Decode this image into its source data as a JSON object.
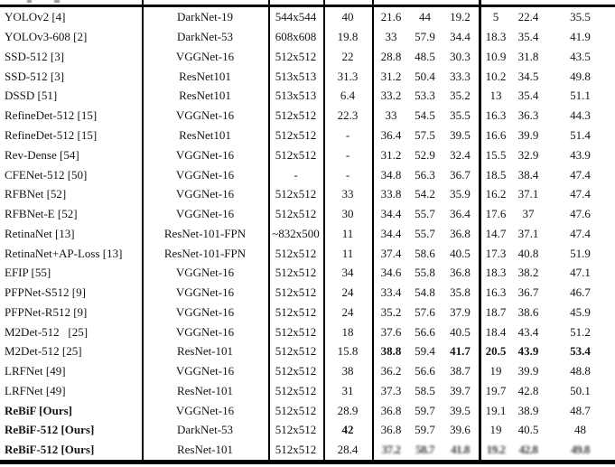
{
  "colors": {
    "background": "#ffffff",
    "rule": "#000000",
    "text": "#141414"
  },
  "table": {
    "rows": [
      {
        "method": "YOLOv2 [4]",
        "backbone": "DarkNet-19",
        "size": "544x544",
        "fps": "40",
        "ap": "21.6",
        "ap50": "44",
        "ap75": "19.2",
        "aps": "5",
        "apm": "22.4",
        "apl": "35.5",
        "bold_fields": [],
        "blur_fields": []
      },
      {
        "method": "YOLOv3-608 [2]",
        "backbone": "DarkNet-53",
        "size": "608x608",
        "fps": "19.8",
        "ap": "33",
        "ap50": "57.9",
        "ap75": "34.4",
        "aps": "18.3",
        "apm": "35.4",
        "apl": "41.9",
        "bold_fields": [],
        "blur_fields": []
      },
      {
        "method": "SSD-512 [3]",
        "backbone": "VGGNet-16",
        "size": "512x512",
        "fps": "22",
        "ap": "28.8",
        "ap50": "48.5",
        "ap75": "30.3",
        "aps": "10.9",
        "apm": "31.8",
        "apl": "43.5",
        "bold_fields": [],
        "blur_fields": []
      },
      {
        "method": "SSD-512 [3]",
        "backbone": "ResNet101",
        "size": "513x513",
        "fps": "31.3",
        "ap": "31.2",
        "ap50": "50.4",
        "ap75": "33.3",
        "aps": "10.2",
        "apm": "34.5",
        "apl": "49.8",
        "bold_fields": [],
        "blur_fields": []
      },
      {
        "method": "DSSD [51]",
        "backbone": "ResNet101",
        "size": "513x513",
        "fps": "6.4",
        "ap": "33.2",
        "ap50": "53.3",
        "ap75": "35.2",
        "aps": "13",
        "apm": "35.4",
        "apl": "51.1",
        "bold_fields": [],
        "blur_fields": []
      },
      {
        "method": "RefineDet-512 [15]",
        "backbone": "VGGNet-16",
        "size": "512x512",
        "fps": "22.3",
        "ap": "33",
        "ap50": "54.5",
        "ap75": "35.5",
        "aps": "16.3",
        "apm": "36.3",
        "apl": "44.3",
        "bold_fields": [],
        "blur_fields": []
      },
      {
        "method": "RefineDet-512 [15]",
        "backbone": "ResNet101",
        "size": "512x512",
        "fps": "-",
        "ap": "36.4",
        "ap50": "57.5",
        "ap75": "39.5",
        "aps": "16.6",
        "apm": "39.9",
        "apl": "51.4",
        "bold_fields": [],
        "blur_fields": []
      },
      {
        "method": "Rev-Dense [54]",
        "backbone": "VGGNet-16",
        "size": "512x512",
        "fps": "-",
        "ap": "31.2",
        "ap50": "52.9",
        "ap75": "32.4",
        "aps": "15.5",
        "apm": "32.9",
        "apl": "43.9",
        "bold_fields": [],
        "blur_fields": []
      },
      {
        "method": "CFENet-512 [50]",
        "backbone": "VGGNet-16",
        "size": "-",
        "fps": "-",
        "ap": "34.8",
        "ap50": "56.3",
        "ap75": "36.7",
        "aps": "18.5",
        "apm": "38.4",
        "apl": "47.4",
        "bold_fields": [],
        "blur_fields": []
      },
      {
        "method": "RFBNet [52]",
        "backbone": "VGGNet-16",
        "size": "512x512",
        "fps": "33",
        "ap": "33.8",
        "ap50": "54.2",
        "ap75": "35.9",
        "aps": "16.2",
        "apm": "37.1",
        "apl": "47.4",
        "bold_fields": [],
        "blur_fields": []
      },
      {
        "method": "RFBNet-E [52]",
        "backbone": "VGGNet-16",
        "size": "512x512",
        "fps": "30",
        "ap": "34.4",
        "ap50": "55.7",
        "ap75": "36.4",
        "aps": "17.6",
        "apm": "37",
        "apl": "47.6",
        "bold_fields": [],
        "blur_fields": []
      },
      {
        "method": "RetinaNet [13]",
        "backbone": "ResNet-101-FPN",
        "size": "~832x500",
        "fps": "11",
        "ap": "34.4",
        "ap50": "55.7",
        "ap75": "36.8",
        "aps": "14.7",
        "apm": "37.1",
        "apl": "47.4",
        "bold_fields": [],
        "blur_fields": []
      },
      {
        "method": "RetinaNet+AP-Loss [13]",
        "backbone": "ResNet-101-FPN",
        "size": "512x512",
        "fps": "11",
        "ap": "37.4",
        "ap50": "58.6",
        "ap75": "40.5",
        "aps": "17.3",
        "apm": "40.8",
        "apl": "51.9",
        "bold_fields": [],
        "blur_fields": []
      },
      {
        "method": "EFIP [55]",
        "backbone": "VGGNet-16",
        "size": "512x512",
        "fps": "34",
        "ap": "34.6",
        "ap50": "55.8",
        "ap75": "36.8",
        "aps": "18.3",
        "apm": "38.2",
        "apl": "47.1",
        "bold_fields": [],
        "blur_fields": []
      },
      {
        "method": "PFPNet-S512 [9]",
        "backbone": "VGGNet-16",
        "size": "512x512",
        "fps": "24",
        "ap": "33.4",
        "ap50": "54.8",
        "ap75": "35.8",
        "aps": "16.3",
        "apm": "36.7",
        "apl": "46.7",
        "bold_fields": [],
        "blur_fields": []
      },
      {
        "method": "PFPNet-R512 [9]",
        "backbone": "VGGNet-16",
        "size": "512x512",
        "fps": "24",
        "ap": "35.2",
        "ap50": "57.6",
        "ap75": "37.9",
        "aps": "18.7",
        "apm": "38.6",
        "apl": "45.9",
        "bold_fields": [],
        "blur_fields": []
      },
      {
        "method": "M2Det-512   [25]",
        "backbone": "VGGNet-16",
        "size": "512x512",
        "fps": "18",
        "ap": "37.6",
        "ap50": "56.6",
        "ap75": "40.5",
        "aps": "18.4",
        "apm": "43.4",
        "apl": "51.2",
        "bold_fields": [],
        "blur_fields": []
      },
      {
        "method": "M2Det-512 [25]",
        "backbone": "ResNet-101",
        "size": "512x512",
        "fps": "15.8",
        "ap": "38.8",
        "ap50": "59.4",
        "ap75": "41.7",
        "aps": "20.5",
        "apm": "43.9",
        "apl": "53.4",
        "bold_fields": [
          "ap",
          "ap75",
          "aps",
          "apm",
          "apl"
        ],
        "blur_fields": []
      },
      {
        "method": "LRFNet [49]",
        "backbone": "VGGNet-16",
        "size": "512x512",
        "fps": "38",
        "ap": "36.2",
        "ap50": "56.6",
        "ap75": "38.7",
        "aps": "19",
        "apm": "39.9",
        "apl": "48.8",
        "bold_fields": [],
        "blur_fields": []
      },
      {
        "method": "LRFNet [49]",
        "backbone": "ResNet-101",
        "size": "512x512",
        "fps": "31",
        "ap": "37.3",
        "ap50": "58.5",
        "ap75": "39.7",
        "aps": "19.7",
        "apm": "42.8",
        "apl": "50.1",
        "bold_fields": [],
        "blur_fields": []
      },
      {
        "method": "ReBiF [Ours]",
        "backbone": "VGGNet-16",
        "size": "512x512",
        "fps": "28.9",
        "ap": "36.8",
        "ap50": "59.7",
        "ap75": "39.5",
        "aps": "19.1",
        "apm": "38.9",
        "apl": "48.7",
        "bold_fields": [
          "method"
        ],
        "blur_fields": []
      },
      {
        "method": "ReBiF-512 [Ours]",
        "backbone": "DarkNet-53",
        "size": "512x512",
        "fps": "42",
        "ap": "36.8",
        "ap50": "59.7",
        "ap75": "39.6",
        "aps": "19",
        "apm": "40.5",
        "apl": "48",
        "bold_fields": [
          "method",
          "fps"
        ],
        "blur_fields": []
      },
      {
        "method": "ReBiF-512 [Ours]",
        "backbone": "ResNet-101",
        "size": "512x512",
        "fps": "28.4",
        "ap": "37.2",
        "ap50": "58.7",
        "ap75": "41.8",
        "aps": "19.2",
        "apm": "42.8",
        "apl": "49.8",
        "bold_fields": [
          "method"
        ],
        "blur_fields": [
          "ap",
          "ap50",
          "ap75",
          "aps",
          "apm",
          "apl"
        ]
      }
    ]
  }
}
